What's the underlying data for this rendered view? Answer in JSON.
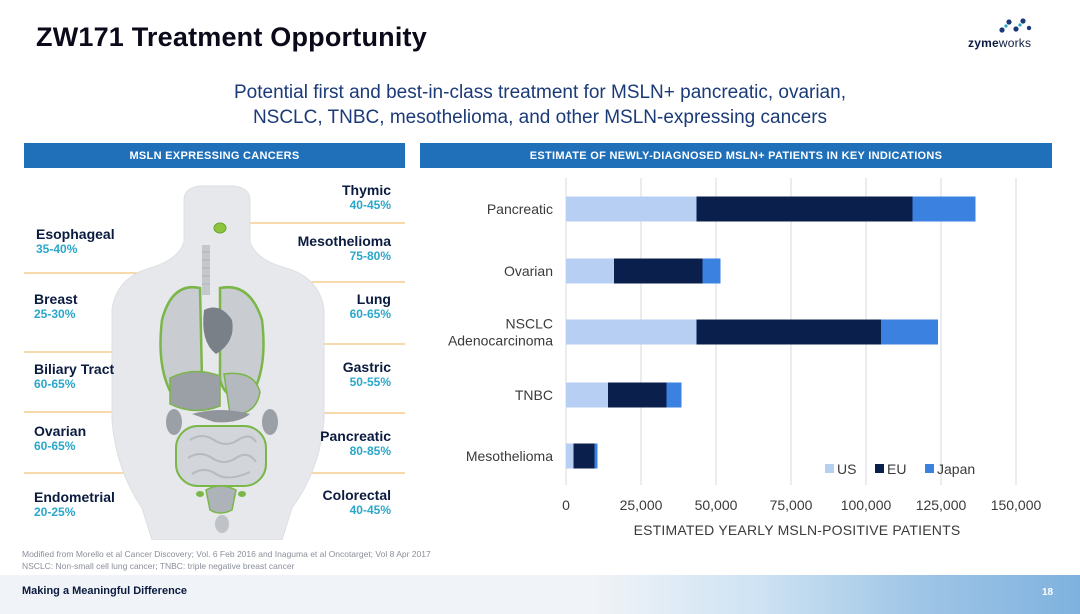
{
  "slide": {
    "title": "ZW171 Treatment Opportunity",
    "logo": {
      "brand_bold": "zyme",
      "brand_regular": "works"
    },
    "subtitle_line1": "Potential first and best-in-class treatment for MSLN+ pancreatic, ovarian,",
    "subtitle_line2": "NSCLC, TNBC, mesothelioma, and other MSLN-expressing cancers",
    "left_banner": "MSLN EXPRESSING CANCERS",
    "right_banner": "ESTIMATE OF NEWLY-DIAGNOSED MSLN+ PATIENTS IN KEY INDICATIONS",
    "footnote_line1": "Modified from Morello et al Cancer Discovery; Vol. 6 Feb 2016 and Inaguma et al Oncotarget; Vol 8 Apr 2017",
    "footnote_line2": "NSCLC: Non-small cell lung cancer; TNBC: triple negative breast cancer",
    "footer_text": "Making a Meaningful Difference",
    "page_number": "18"
  },
  "cancers_left": [
    {
      "name": "Esophageal",
      "pct": "35-40%"
    },
    {
      "name": "Breast",
      "pct": "25-30%"
    },
    {
      "name": "Biliary Tract",
      "pct": "60-65%"
    },
    {
      "name": "Ovarian",
      "pct": "60-65%"
    },
    {
      "name": "Endometrial",
      "pct": "20-25%"
    }
  ],
  "cancers_right": [
    {
      "name": "Thymic",
      "pct": "40-45%"
    },
    {
      "name": "Mesothelioma",
      "pct": "75-80%"
    },
    {
      "name": "Lung",
      "pct": "60-65%"
    },
    {
      "name": "Gastric",
      "pct": "50-55%"
    },
    {
      "name": "Pancreatic",
      "pct": "80-85%"
    },
    {
      "name": "Colorectal",
      "pct": "40-45%"
    }
  ],
  "chart_data": {
    "type": "bar",
    "orientation": "horizontal",
    "stacked": true,
    "categories": [
      "Pancreatic",
      "Ovarian",
      "NSCLC Adenocarcinoma",
      "TNBC",
      "Mesothelioma"
    ],
    "category_lines": [
      [
        "Pancreatic"
      ],
      [
        "Ovarian"
      ],
      [
        "NSCLC",
        "Adenocarcinoma"
      ],
      [
        "TNBC"
      ],
      [
        "Mesothelioma"
      ]
    ],
    "series": [
      {
        "name": "US",
        "color": "#b7cff2",
        "values": [
          43500,
          16000,
          43500,
          14000,
          2500
        ]
      },
      {
        "name": "EU",
        "color": "#0b1f4d",
        "values": [
          72000,
          29500,
          61500,
          19500,
          7000
        ]
      },
      {
        "name": "Japan",
        "color": "#3b82e0",
        "values": [
          21000,
          6000,
          19000,
          5000,
          1000
        ]
      }
    ],
    "xlabel": "ESTIMATED YEARLY MSLN-POSITIVE PATIENTS",
    "xlim": [
      0,
      150000
    ],
    "xticks": [
      "0",
      "25,000",
      "50,000",
      "75,000",
      "100,000",
      "125,000",
      "150,000"
    ],
    "grid": true,
    "legend": "bottom-right"
  }
}
